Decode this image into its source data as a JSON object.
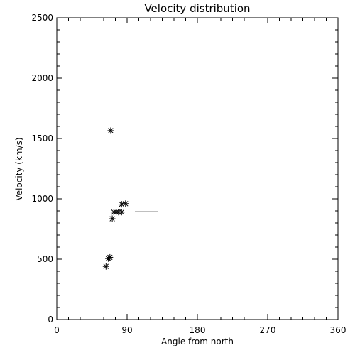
{
  "chart_data": {
    "type": "scatter",
    "title": "Velocity distribution",
    "xlabel": "Angle from north",
    "ylabel": "Velocity (km/s)",
    "xlim": [
      0,
      360
    ],
    "ylim": [
      0,
      2500
    ],
    "xticks": [
      0,
      90,
      180,
      270,
      360
    ],
    "yticks": [
      0,
      500,
      1000,
      1500,
      2000,
      2500
    ],
    "x_minor_step": 15,
    "y_minor_step": 100,
    "grid": false,
    "marker": "asterisk",
    "points": [
      {
        "x": 69,
        "y": 1565
      },
      {
        "x": 63,
        "y": 440
      },
      {
        "x": 66,
        "y": 505
      },
      {
        "x": 68,
        "y": 515
      },
      {
        "x": 71,
        "y": 835
      },
      {
        "x": 73,
        "y": 890
      },
      {
        "x": 76,
        "y": 890
      },
      {
        "x": 79,
        "y": 890
      },
      {
        "x": 83,
        "y": 890
      },
      {
        "x": 83,
        "y": 955
      },
      {
        "x": 88,
        "y": 960
      }
    ],
    "segments": [
      {
        "x0": 100,
        "x1": 130,
        "y": 893
      }
    ]
  }
}
